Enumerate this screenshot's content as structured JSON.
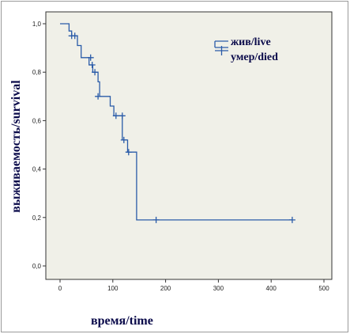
{
  "chart_data": {
    "type": "line",
    "subtype": "kaplan-meier",
    "title": "",
    "xlabel": "время/time",
    "ylabel": "выживаемость/survival",
    "xlim": [
      0,
      500
    ],
    "ylim": [
      0,
      1.0
    ],
    "x_ticks": [
      "0",
      "100",
      "200",
      "300",
      "400",
      "500"
    ],
    "x_tick_values": [
      0,
      100,
      200,
      300,
      400,
      500
    ],
    "y_ticks": [
      "0,0",
      "0,2",
      "0,4",
      "0,6",
      "0,8",
      "1,0"
    ],
    "y_tick_values": [
      0.0,
      0.2,
      0.4,
      0.6,
      0.8,
      1.0
    ],
    "grid": false,
    "legend": {
      "placement": "top-right",
      "entries": [
        "жив/live",
        "умер/died"
      ]
    },
    "colors": {
      "line": "#2a5ba8",
      "plot_bg": "#f0f0e8",
      "frame": "#333333"
    },
    "series": [
      {
        "name": "жив/live",
        "steps": [
          [
            0,
            1.0
          ],
          [
            17,
            0.97
          ],
          [
            22,
            0.95
          ],
          [
            33,
            0.91
          ],
          [
            40,
            0.86
          ],
          [
            55,
            0.83
          ],
          [
            62,
            0.8
          ],
          [
            72,
            0.76
          ],
          [
            75,
            0.7
          ],
          [
            95,
            0.66
          ],
          [
            102,
            0.62
          ],
          [
            118,
            0.52
          ],
          [
            128,
            0.47
          ],
          [
            145,
            0.19
          ],
          [
            440,
            0.19
          ]
        ],
        "censored": [
          [
            22,
            0.95
          ],
          [
            28,
            0.95
          ],
          [
            58,
            0.86
          ],
          [
            61,
            0.83
          ],
          [
            66,
            0.8
          ],
          [
            72,
            0.7
          ],
          [
            106,
            0.62
          ],
          [
            118,
            0.62
          ],
          [
            121,
            0.52
          ],
          [
            130,
            0.47
          ],
          [
            182,
            0.19
          ],
          [
            440,
            0.19
          ]
        ]
      }
    ]
  }
}
